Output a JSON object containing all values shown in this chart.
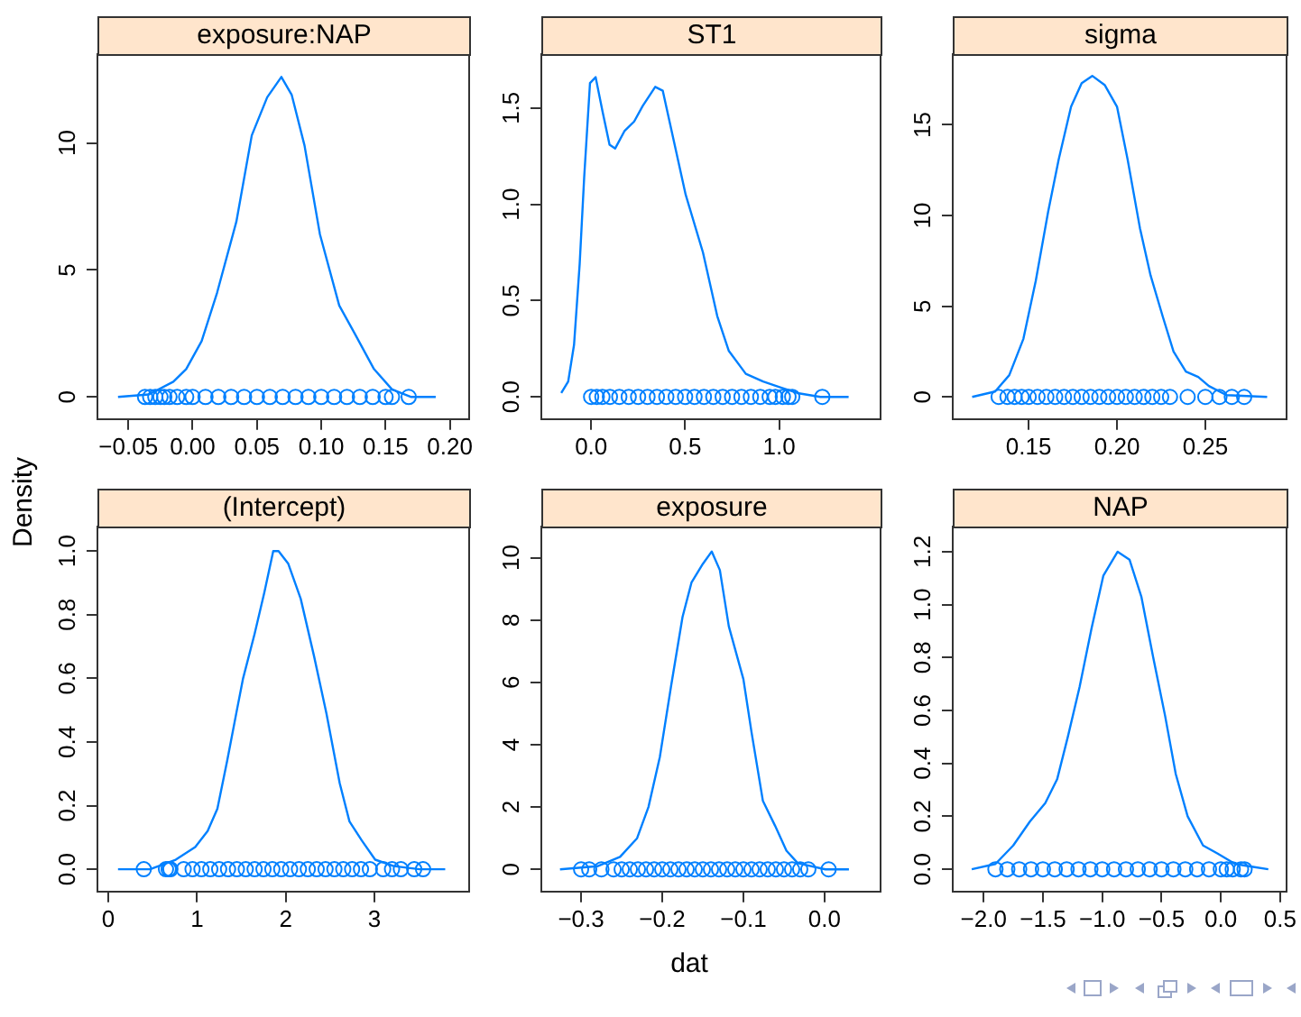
{
  "chart_data": [
    {
      "type": "line",
      "title": "exposure:NAP",
      "xlim": [
        -0.074,
        0.215
      ],
      "ylim": [
        -0.87,
        13.5
      ],
      "xticks": [
        {
          "value": -0.05,
          "label": "−0.05"
        },
        {
          "value": 0,
          "label": "0.00"
        },
        {
          "value": 0.05,
          "label": "0.05"
        },
        {
          "value": 0.1,
          "label": "0.10"
        },
        {
          "value": 0.15,
          "label": "0.15"
        },
        {
          "value": 0.2,
          "label": "0.20"
        }
      ],
      "yticks": [
        0,
        5,
        10
      ],
      "series": [
        {
          "type": "line",
          "color": "#0080ff",
          "x": [
            -0.058,
            -0.034,
            -0.015,
            -0.005,
            0.007,
            0.019,
            0.034,
            0.046,
            0.058,
            0.069,
            0.077,
            0.087,
            0.099,
            0.114,
            0.126,
            0.141,
            0.155,
            0.17,
            0.189
          ],
          "values": [
            0,
            0.1,
            0.6,
            1.1,
            2.2,
            4.1,
            6.9,
            10.3,
            11.8,
            12.6,
            11.9,
            9.9,
            6.4,
            3.6,
            2.5,
            1.1,
            0.3,
            0,
            0
          ]
        },
        {
          "type": "scatter",
          "color": "#0080ff",
          "marker": "circle",
          "x": [
            -0.037,
            -0.033,
            -0.029,
            -0.025,
            -0.022,
            -0.018,
            -0.012,
            -0.005,
            0,
            0.01,
            0.02,
            0.03,
            0.04,
            0.05,
            0.06,
            0.07,
            0.08,
            0.09,
            0.1,
            0.11,
            0.12,
            0.13,
            0.14,
            0.15,
            0.155,
            0.168
          ],
          "values": [
            0,
            0,
            0,
            0,
            0,
            0,
            0,
            0,
            0,
            0,
            0,
            0,
            0,
            0,
            0,
            0,
            0,
            0,
            0,
            0,
            0,
            0,
            0,
            0,
            0,
            0
          ]
        }
      ]
    },
    {
      "type": "line",
      "title": "ST1",
      "xlim": [
        -0.265,
        1.54
      ],
      "ylim": [
        -0.115,
        1.78
      ],
      "xticks": [
        {
          "value": 0,
          "label": "0.0"
        },
        {
          "value": 0.5,
          "label": "0.5"
        },
        {
          "value": 1,
          "label": "1.0"
        }
      ],
      "yticks": [
        {
          "value": 0,
          "label": "0.0"
        },
        {
          "value": 0.5,
          "label": "0.5"
        },
        {
          "value": 1,
          "label": "1.0"
        },
        {
          "value": 1.5,
          "label": "1.5"
        }
      ],
      "series": [
        {
          "type": "line",
          "color": "#0080ff",
          "x": [
            -0.159,
            -0.122,
            -0.091,
            -0.061,
            -0.037,
            -0.006,
            0.024,
            0.061,
            0.098,
            0.128,
            0.177,
            0.229,
            0.274,
            0.341,
            0.381,
            0.442,
            0.503,
            0.595,
            0.671,
            0.732,
            0.823,
            0.915,
            1.006,
            1.098,
            1.22,
            1.37
          ],
          "values": [
            0.02,
            0.08,
            0.27,
            0.69,
            1.14,
            1.63,
            1.66,
            1.48,
            1.31,
            1.29,
            1.38,
            1.43,
            1.51,
            1.61,
            1.59,
            1.32,
            1.05,
            0.75,
            0.42,
            0.24,
            0.12,
            0.08,
            0.05,
            0.02,
            0,
            0
          ]
        },
        {
          "type": "scatter",
          "color": "#0080ff",
          "marker": "circle",
          "x": [
            0,
            0.03,
            0.06,
            0.1,
            0.15,
            0.2,
            0.25,
            0.3,
            0.35,
            0.4,
            0.45,
            0.5,
            0.55,
            0.6,
            0.65,
            0.7,
            0.75,
            0.8,
            0.85,
            0.9,
            0.95,
            0.98,
            1.02,
            1.05,
            1.07,
            1.23
          ],
          "values": [
            0,
            0,
            0,
            0,
            0,
            0,
            0,
            0,
            0,
            0,
            0,
            0,
            0,
            0,
            0,
            0,
            0,
            0,
            0,
            0,
            0,
            0,
            0,
            0,
            0,
            0
          ]
        }
      ]
    },
    {
      "type": "line",
      "title": "sigma",
      "xlim": [
        0.107,
        0.296
      ],
      "ylim": [
        -1.22,
        18.9
      ],
      "xticks": [
        0.15,
        {
          "value": 0.2,
          "label": "0.20"
        },
        0.25
      ],
      "yticks": [
        0,
        5,
        10,
        15
      ],
      "series": [
        {
          "type": "line",
          "color": "#0080ff",
          "x": [
            0.118,
            0.131,
            0.139,
            0.147,
            0.154,
            0.161,
            0.167,
            0.174,
            0.18,
            0.186,
            0.193,
            0.2,
            0.206,
            0.213,
            0.219,
            0.226,
            0.232,
            0.239,
            0.246,
            0.252,
            0.262,
            0.285
          ],
          "values": [
            0,
            0.3,
            1.2,
            3.2,
            6.4,
            10.2,
            13.1,
            16.0,
            17.3,
            17.7,
            17.2,
            16.0,
            13.1,
            9.3,
            6.7,
            4.4,
            2.5,
            1.4,
            1.1,
            0.6,
            0.1,
            0
          ]
        },
        {
          "type": "scatter",
          "color": "#0080ff",
          "marker": "circle",
          "x": [
            0.133,
            0.138,
            0.142,
            0.146,
            0.15,
            0.155,
            0.16,
            0.165,
            0.17,
            0.175,
            0.18,
            0.185,
            0.19,
            0.195,
            0.2,
            0.205,
            0.21,
            0.215,
            0.22,
            0.225,
            0.23,
            0.24,
            0.25,
            0.258,
            0.265,
            0.272
          ],
          "values": [
            0,
            0,
            0,
            0,
            0,
            0,
            0,
            0,
            0,
            0,
            0,
            0,
            0,
            0,
            0,
            0,
            0,
            0,
            0,
            0,
            0,
            0,
            0,
            0,
            0,
            0
          ]
        }
      ]
    },
    {
      "type": "line",
      "title": "(Intercept)",
      "ylabel": "Density",
      "xlim": [
        -0.123,
        4.07
      ],
      "ylim": [
        -0.07,
        1.077
      ],
      "xticks": [
        0,
        1,
        2,
        3
      ],
      "yticks": [
        {
          "value": 0,
          "label": "0.0"
        },
        0.2,
        0.4,
        0.6,
        0.8,
        {
          "value": 1,
          "label": "1.0"
        }
      ],
      "series": [
        {
          "type": "line",
          "color": "#0080ff",
          "x": [
            0.109,
            0.47,
            0.76,
            0.98,
            1.12,
            1.23,
            1.34,
            1.45,
            1.52,
            1.65,
            1.76,
            1.86,
            1.92,
            2.03,
            2.17,
            2.32,
            2.46,
            2.61,
            2.72,
            2.86,
            3.01,
            3.22,
            3.51,
            3.8
          ],
          "values": [
            0,
            0,
            0.03,
            0.07,
            0.12,
            0.19,
            0.34,
            0.5,
            0.6,
            0.74,
            0.87,
            1.0,
            1.0,
            0.96,
            0.85,
            0.67,
            0.49,
            0.27,
            0.15,
            0.09,
            0.03,
            0.01,
            0,
            0
          ]
        },
        {
          "type": "scatter",
          "color": "#0080ff",
          "marker": "circle",
          "x": [
            0.4,
            0.65,
            0.68,
            0.7,
            0.85,
            0.95,
            1.05,
            1.15,
            1.25,
            1.35,
            1.45,
            1.55,
            1.65,
            1.75,
            1.85,
            1.95,
            2.05,
            2.15,
            2.25,
            2.35,
            2.45,
            2.55,
            2.65,
            2.75,
            2.85,
            2.95,
            3.1,
            3.2,
            3.3,
            3.45,
            3.55
          ],
          "values": [
            0,
            0,
            0,
            0,
            0,
            0,
            0,
            0,
            0,
            0,
            0,
            0,
            0,
            0,
            0,
            0,
            0,
            0,
            0,
            0,
            0,
            0,
            0,
            0,
            0,
            0,
            0,
            0,
            0,
            0,
            0
          ]
        }
      ]
    },
    {
      "type": "line",
      "title": "exposure",
      "xlabel": "dat",
      "xlim": [
        -0.349,
        0.069
      ],
      "ylim": [
        -0.71,
        11.0
      ],
      "xticks": [
        {
          "value": -0.3,
          "label": "−0.3"
        },
        {
          "value": -0.2,
          "label": "−0.2"
        },
        {
          "value": -0.1,
          "label": "−0.1"
        },
        {
          "value": 0,
          "label": "0.0"
        }
      ],
      "yticks": [
        0,
        2,
        4,
        6,
        8,
        10
      ],
      "series": [
        {
          "type": "line",
          "color": "#0080ff",
          "x": [
            -0.326,
            -0.28,
            -0.252,
            -0.231,
            -0.217,
            -0.203,
            -0.189,
            -0.175,
            -0.164,
            -0.15,
            -0.139,
            -0.129,
            -0.118,
            -0.1,
            -0.09,
            -0.076,
            -0.061,
            -0.047,
            -0.033,
            0.001,
            0.03
          ],
          "values": [
            0,
            0.1,
            0.4,
            1.0,
            2.0,
            3.6,
            5.9,
            8.1,
            9.2,
            9.8,
            10.2,
            9.6,
            7.8,
            6.1,
            4.4,
            2.2,
            1.4,
            0.6,
            0.2,
            0,
            0
          ]
        },
        {
          "type": "scatter",
          "color": "#0080ff",
          "marker": "circle",
          "x": [
            -0.3,
            -0.29,
            -0.275,
            -0.26,
            -0.25,
            -0.24,
            -0.23,
            -0.22,
            -0.21,
            -0.2,
            -0.19,
            -0.18,
            -0.17,
            -0.16,
            -0.15,
            -0.14,
            -0.13,
            -0.12,
            -0.11,
            -0.1,
            -0.09,
            -0.08,
            -0.07,
            -0.06,
            -0.05,
            -0.04,
            -0.03,
            -0.02,
            0.005
          ],
          "values": [
            0,
            0,
            0,
            0,
            0,
            0,
            0,
            0,
            0,
            0,
            0,
            0,
            0,
            0,
            0,
            0,
            0,
            0,
            0,
            0,
            0,
            0,
            0,
            0,
            0,
            0,
            0,
            0,
            0
          ]
        }
      ]
    },
    {
      "type": "line",
      "title": "NAP",
      "xlim": [
        -2.26,
        0.554
      ],
      "ylim": [
        -0.084,
        1.295
      ],
      "xticks": [
        {
          "value": -2,
          "label": "−2.0"
        },
        {
          "value": -1.5,
          "label": "−1.5"
        },
        {
          "value": -1,
          "label": "−1.0"
        },
        {
          "value": -0.5,
          "label": "−0.5"
        },
        {
          "value": 0,
          "label": "0.0"
        },
        0.5
      ],
      "yticks": [
        {
          "value": 0,
          "label": "0.0"
        },
        0.2,
        0.4,
        0.6,
        0.8,
        {
          "value": 1,
          "label": "1.0"
        },
        1.2
      ],
      "series": [
        {
          "type": "line",
          "color": "#0080ff",
          "x": [
            -2.1,
            -1.9,
            -1.75,
            -1.61,
            -1.48,
            -1.38,
            -1.29,
            -1.19,
            -1.09,
            -0.99,
            -0.87,
            -0.77,
            -0.67,
            -0.57,
            -0.47,
            -0.38,
            -0.28,
            -0.15,
            -0.03,
            0.12,
            0.26,
            0.4
          ],
          "values": [
            0,
            0.02,
            0.09,
            0.18,
            0.25,
            0.34,
            0.5,
            0.69,
            0.91,
            1.11,
            1.2,
            1.17,
            1.03,
            0.8,
            0.58,
            0.36,
            0.2,
            0.09,
            0.06,
            0.02,
            0.01,
            0
          ]
        },
        {
          "type": "scatter",
          "color": "#0080ff",
          "marker": "circle",
          "x": [
            -1.9,
            -1.8,
            -1.7,
            -1.6,
            -1.5,
            -1.4,
            -1.3,
            -1.2,
            -1.1,
            -1.0,
            -0.9,
            -0.8,
            -0.7,
            -0.6,
            -0.5,
            -0.4,
            -0.3,
            -0.2,
            -0.1,
            0,
            0.05,
            0.1,
            0.17,
            0.2
          ],
          "values": [
            0,
            0,
            0,
            0,
            0,
            0,
            0,
            0,
            0,
            0,
            0,
            0,
            0,
            0,
            0,
            0,
            0,
            0,
            0,
            0,
            0,
            0,
            0,
            0
          ]
        }
      ]
    }
  ]
}
